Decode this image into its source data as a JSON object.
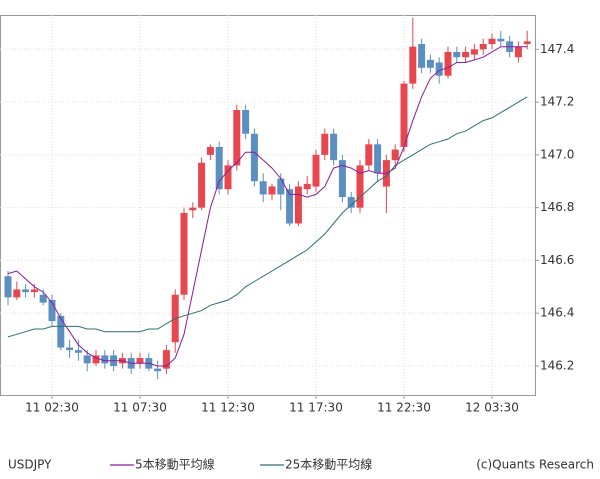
{
  "chart_data": {
    "type": "candlestick",
    "symbol": "USDJPY",
    "credit": "(c)Quants Research",
    "categories": [
      null,
      null,
      null,
      null,
      null,
      "11 02:30",
      null,
      null,
      null,
      null,
      null,
      null,
      null,
      null,
      null,
      "11 07:30",
      null,
      null,
      null,
      null,
      null,
      null,
      null,
      null,
      null,
      "11 12:30",
      null,
      null,
      null,
      null,
      null,
      null,
      null,
      null,
      null,
      "11 17:30",
      null,
      null,
      null,
      null,
      null,
      null,
      null,
      null,
      null,
      "11 22:30",
      null,
      null,
      null,
      null,
      null,
      null,
      null,
      null,
      null,
      "12 03:30",
      null,
      null,
      null,
      null
    ],
    "open": [
      146.54,
      146.46,
      146.49,
      146.48,
      146.47,
      146.45,
      146.39,
      146.27,
      146.26,
      146.24,
      146.21,
      146.24,
      146.24,
      146.21,
      146.23,
      146.21,
      146.23,
      146.19,
      146.19,
      146.29,
      146.47,
      146.79,
      146.8,
      147.0,
      147.03,
      146.87,
      146.96,
      147.17,
      147.08,
      146.9,
      146.85,
      146.91,
      146.87,
      146.74,
      146.87,
      146.88,
      147.0,
      147.08,
      146.98,
      146.84,
      146.8,
      146.96,
      147.04,
      146.88,
      146.98,
      147.03,
      147.27,
      147.42,
      147.36,
      147.35,
      147.3,
      147.39,
      147.37,
      147.38,
      147.4,
      147.42,
      147.44,
      147.43,
      147.37,
      147.42
    ],
    "high": [
      146.56,
      146.52,
      146.51,
      146.51,
      146.49,
      146.47,
      146.4,
      146.3,
      146.3,
      146.26,
      146.26,
      146.26,
      146.26,
      146.25,
      146.25,
      146.25,
      146.25,
      146.22,
      146.28,
      146.49,
      146.8,
      146.82,
      146.99,
      147.04,
      147.05,
      146.98,
      147.19,
      147.19,
      147.1,
      146.93,
      146.89,
      146.93,
      146.89,
      146.9,
      146.92,
      147.02,
      147.1,
      147.1,
      147.0,
      146.86,
      146.98,
      147.06,
      147.06,
      147.0,
      147.04,
      147.28,
      147.52,
      147.44,
      147.38,
      147.37,
      147.41,
      147.41,
      147.41,
      147.42,
      147.44,
      147.46,
      147.47,
      147.45,
      147.43,
      147.47
    ],
    "low": [
      146.43,
      146.45,
      146.46,
      146.46,
      146.43,
      146.35,
      146.26,
      146.23,
      146.22,
      146.18,
      146.2,
      146.19,
      146.18,
      146.19,
      146.17,
      146.19,
      146.18,
      146.15,
      146.17,
      146.25,
      146.45,
      146.76,
      146.79,
      146.98,
      146.85,
      146.85,
      146.94,
      147.06,
      146.88,
      146.82,
      146.83,
      146.79,
      146.73,
      146.73,
      146.85,
      146.86,
      146.98,
      146.96,
      146.82,
      146.78,
      146.78,
      146.94,
      146.9,
      146.78,
      146.96,
      147.01,
      147.25,
      147.31,
      147.31,
      147.27,
      147.29,
      147.35,
      147.35,
      147.36,
      147.38,
      147.4,
      147.41,
      147.37,
      147.35,
      147.4
    ],
    "close": [
      146.46,
      146.49,
      146.48,
      146.49,
      146.44,
      146.37,
      146.27,
      146.26,
      146.25,
      146.21,
      146.24,
      146.21,
      146.2,
      146.23,
      146.19,
      146.23,
      146.19,
      146.18,
      146.26,
      146.47,
      146.78,
      146.8,
      146.97,
      147.03,
      146.87,
      146.96,
      147.17,
      147.08,
      146.9,
      146.85,
      146.88,
      146.85,
      146.74,
      146.88,
      146.89,
      147.0,
      147.08,
      146.98,
      146.84,
      146.8,
      146.96,
      147.04,
      146.93,
      146.98,
      147.02,
      147.27,
      147.41,
      147.33,
      147.33,
      147.3,
      147.39,
      147.37,
      147.39,
      147.4,
      147.42,
      147.44,
      147.43,
      147.39,
      147.41,
      147.43
    ],
    "up_color": "#e8464e",
    "down_color": "#5b8fc2",
    "series": [
      {
        "name": "5本移動平均線",
        "color": "#8b1a9c",
        "values": [
          146.55,
          146.56,
          146.53,
          146.5,
          146.48,
          146.44,
          146.38,
          146.33,
          146.28,
          146.25,
          146.23,
          146.22,
          146.22,
          146.22,
          146.21,
          146.21,
          146.21,
          146.2,
          146.2,
          146.23,
          146.32,
          146.48,
          146.64,
          146.8,
          146.9,
          146.94,
          146.97,
          147.01,
          147.01,
          146.98,
          146.95,
          146.91,
          146.85,
          146.85,
          146.84,
          146.85,
          146.88,
          146.95,
          146.96,
          146.95,
          146.93,
          146.94,
          146.93,
          146.93,
          146.95,
          147.03,
          147.13,
          147.22,
          147.29,
          147.32,
          147.33,
          147.35,
          147.35,
          147.36,
          147.37,
          147.39,
          147.41,
          147.41,
          147.41,
          147.41
        ]
      },
      {
        "name": "25本移動平均線",
        "color": "#2f6f73",
        "values": [
          146.31,
          146.32,
          146.33,
          146.34,
          146.34,
          146.35,
          146.35,
          146.35,
          146.35,
          146.34,
          146.34,
          146.33,
          146.33,
          146.33,
          146.33,
          146.33,
          146.34,
          146.34,
          146.36,
          146.38,
          146.39,
          146.4,
          146.41,
          146.43,
          146.44,
          146.45,
          146.47,
          146.5,
          146.52,
          146.54,
          146.56,
          146.58,
          146.6,
          146.62,
          146.64,
          146.67,
          146.7,
          146.74,
          146.78,
          146.81,
          146.84,
          146.87,
          146.9,
          146.92,
          146.96,
          146.98,
          147.0,
          147.02,
          147.04,
          147.05,
          147.06,
          147.08,
          147.09,
          147.11,
          147.13,
          147.14,
          147.16,
          147.18,
          147.2,
          147.22
        ]
      }
    ],
    "ylim": [
      146.09,
      147.53
    ],
    "yticks": [
      146.2,
      146.4,
      146.6,
      146.8,
      {
        "value": 147,
        "label": "147.0"
      },
      147.2,
      147.4
    ],
    "grid": true
  }
}
